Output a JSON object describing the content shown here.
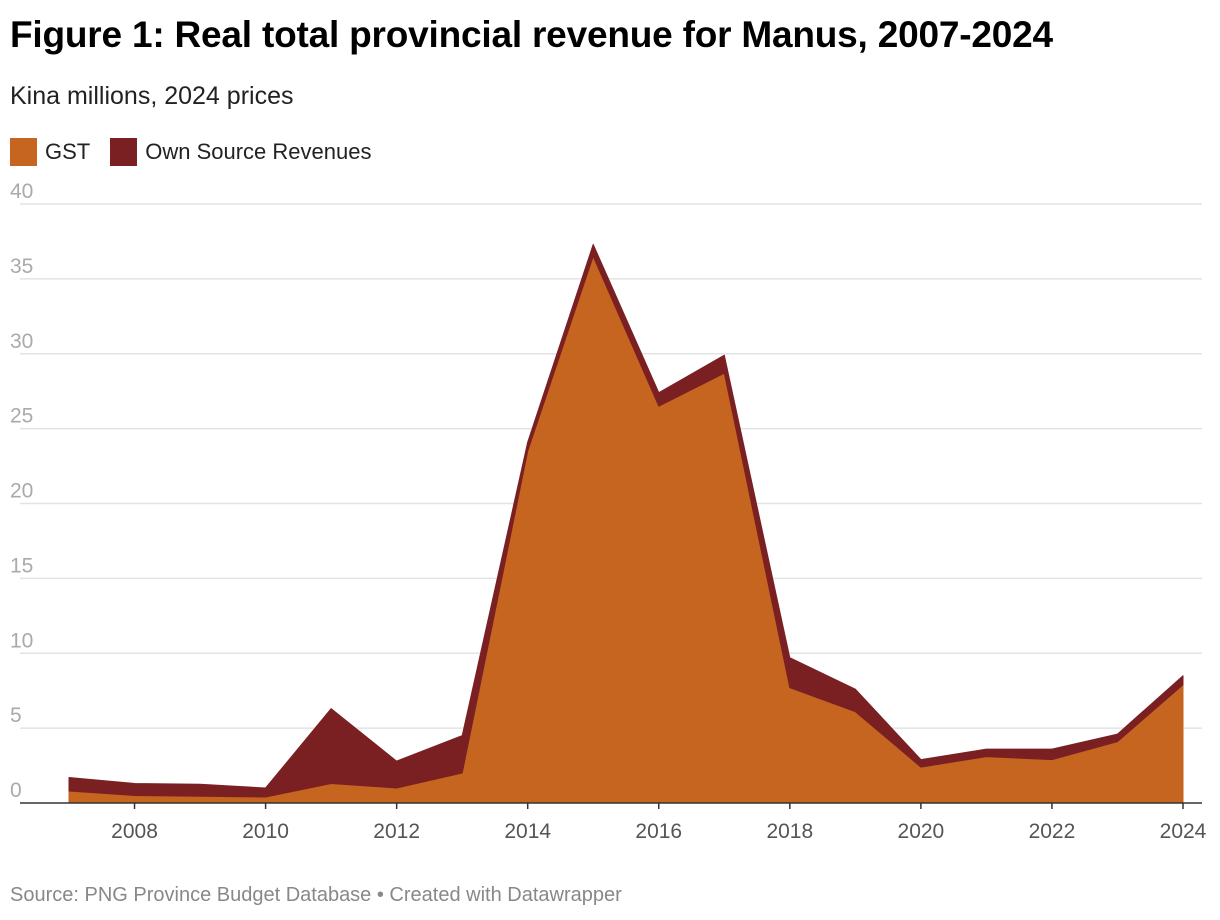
{
  "title": "Figure 1: Real total provincial revenue for Manus, 2007-2024",
  "subtitle": "Kina millions, 2024 prices",
  "source_text": "Source: PNG Province Budget Database • Created with Datawrapper",
  "colors": {
    "gst": "#c5651f",
    "own_source": "#7b2022",
    "grid": "#e3e3e3",
    "axis": "#333333",
    "tick_label": "#aaaaaa",
    "x_label": "#555555"
  },
  "chart_data": {
    "type": "area",
    "stacked": true,
    "title": "Figure 1: Real total provincial revenue for Manus, 2007-2024",
    "subtitle": "Kina millions, 2024 prices",
    "xlabel": "",
    "ylabel": "",
    "x": [
      2007,
      2008,
      2009,
      2010,
      2011,
      2012,
      2013,
      2014,
      2015,
      2016,
      2017,
      2018,
      2019,
      2020,
      2021,
      2022,
      2023,
      2024
    ],
    "x_ticks": [
      "2008",
      "2010",
      "2012",
      "2014",
      "2016",
      "2018",
      "2020",
      "2022",
      "2024"
    ],
    "y_ticks": [
      "0",
      "5",
      "10",
      "15",
      "20",
      "25",
      "30",
      "35",
      "40"
    ],
    "ylim": [
      0,
      40
    ],
    "xlim": [
      2007,
      2024
    ],
    "grid": true,
    "legend_position": "top-left",
    "series": [
      {
        "name": "GST",
        "color": "#c5651f",
        "values": [
          0.8,
          0.5,
          0.45,
          0.4,
          1.3,
          1.0,
          2.0,
          23.5,
          36.5,
          26.5,
          28.7,
          7.7,
          6.1,
          2.4,
          3.1,
          2.9,
          4.1,
          7.9
        ]
      },
      {
        "name": "Own Source Revenues",
        "color": "#7b2022",
        "values": [
          0.9,
          0.8,
          0.8,
          0.6,
          5.0,
          1.8,
          2.5,
          0.6,
          0.8,
          0.9,
          1.2,
          2.0,
          1.5,
          0.5,
          0.5,
          0.7,
          0.5,
          0.6
        ]
      }
    ]
  }
}
